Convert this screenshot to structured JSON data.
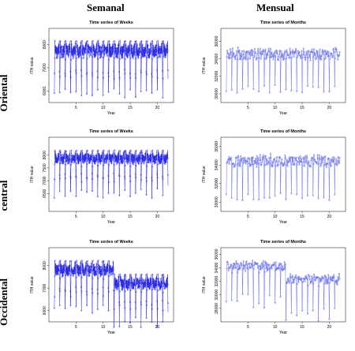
{
  "columns": [
    "Semanal",
    "Mensual"
  ],
  "rows": [
    "Oriental",
    "central",
    "Occidental"
  ],
  "chart_data": [
    {
      "type": "line",
      "region": "Oriental",
      "freq": "weeks",
      "title": "Time series of Weeks",
      "xlabel": "Year",
      "ylabel": "ITH value",
      "xlim": [
        0,
        23
      ],
      "xticks": [
        5,
        10,
        15,
        20
      ],
      "ylim": [
        5500,
        8700
      ],
      "yticks": [
        6000,
        7000,
        8000
      ],
      "peak": 8250,
      "trough": 6100,
      "low": 5700,
      "color": "#2a2ae6"
    },
    {
      "type": "line",
      "region": "Oriental",
      "freq": "months",
      "title": "Time series of Months",
      "xlabel": "Year",
      "ylabel": "ITH value",
      "xlim": [
        0,
        23
      ],
      "xticks": [
        5,
        10,
        15,
        20
      ],
      "ylim": [
        29000,
        37500
      ],
      "yticks": [
        30000,
        32000,
        34000,
        36000
      ],
      "peak": 35700,
      "trough": 31000,
      "low": 30000,
      "color": "#5a64e6"
    },
    {
      "type": "line",
      "region": "central",
      "freq": "weeks",
      "title": "Time series of Weeks",
      "xlabel": "Year",
      "ylabel": "ITH value",
      "xlim": [
        0,
        23
      ],
      "xticks": [
        5,
        10,
        15,
        20
      ],
      "ylim": [
        5800,
        8700
      ],
      "yticks": [
        6500,
        7000,
        7500,
        8000
      ],
      "peak": 8250,
      "trough": 6700,
      "low": 6300,
      "color": "#2a2ae6"
    },
    {
      "type": "line",
      "region": "central",
      "freq": "months",
      "title": "Time series of Months",
      "xlabel": "Year",
      "ylabel": "ITH value",
      "xlim": [
        0,
        23
      ],
      "xticks": [
        5,
        10,
        15,
        20
      ],
      "ylim": [
        29000,
        37000
      ],
      "yticks": [
        30000,
        32000,
        34000,
        36000
      ],
      "peak": 35600,
      "trough": 31000,
      "low": 30000,
      "color": "#5a64e6"
    },
    {
      "type": "line",
      "region": "Occidental",
      "freq": "weeks",
      "title": "Time series of Weeks",
      "xlabel": "Year",
      "ylabel": "ITH value",
      "xlim": [
        0,
        23
      ],
      "xticks": [
        5,
        10,
        15,
        20
      ],
      "ylim": [
        5500,
        8800
      ],
      "yticks": [
        6000,
        7000,
        8000
      ],
      "peak": 8300,
      "trough": 6300,
      "low": 5800,
      "shift": 600,
      "color": "#2a2ae6"
    },
    {
      "type": "line",
      "region": "Occidental",
      "freq": "months",
      "title": "Time series of Months",
      "xlabel": "Year",
      "ylabel": "ITH value",
      "xlim": [
        0,
        23
      ],
      "xticks": [
        5,
        10,
        15,
        20
      ],
      "ylim": [
        26000,
        37000
      ],
      "yticks": [
        28000,
        30000,
        32000,
        34000,
        36000
      ],
      "peak": 35500,
      "trough": 30500,
      "low": 28000,
      "shift": 2000,
      "color": "#5a64e6"
    }
  ]
}
